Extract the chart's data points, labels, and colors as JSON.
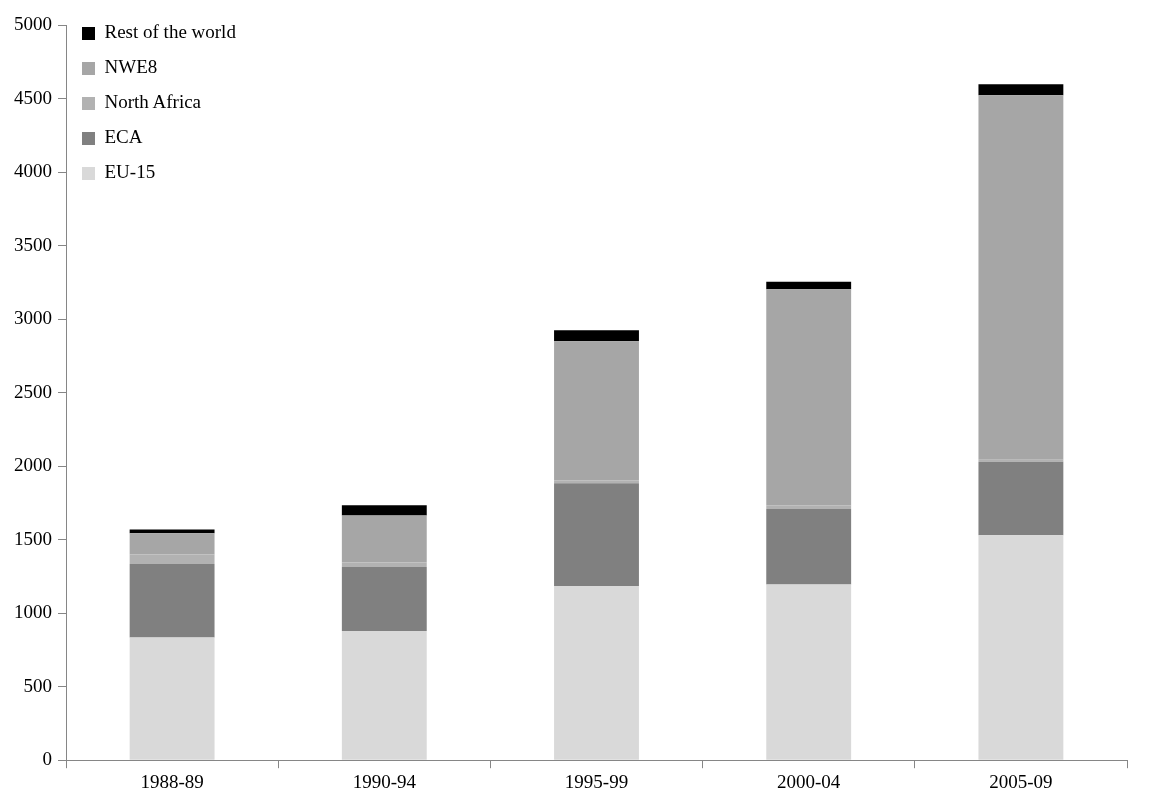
{
  "chart_data": {
    "type": "bar",
    "stacked": true,
    "categories": [
      "1988-89",
      "1990-94",
      "1995-99",
      "2000-04",
      "2005-09"
    ],
    "series": [
      {
        "name": "EU-15",
        "color": "#d9d9d9",
        "values": [
          835,
          880,
          1185,
          1195,
          1530
        ]
      },
      {
        "name": "ECA",
        "color": "#808080",
        "values": [
          500,
          435,
          700,
          515,
          500
        ]
      },
      {
        "name": "North Africa",
        "color": "#b2b2b2",
        "values": [
          65,
          30,
          20,
          25,
          15
        ]
      },
      {
        "name": "NWE8",
        "color": "#a6a6a6",
        "values": [
          145,
          320,
          945,
          1470,
          2480
        ]
      },
      {
        "name": "Rest of the world",
        "color": "#000000",
        "values": [
          25,
          70,
          75,
          50,
          75
        ]
      }
    ],
    "ylim": [
      0,
      5000
    ],
    "yticks": [
      0,
      500,
      1000,
      1500,
      2000,
      2500,
      3000,
      3500,
      4000,
      4500,
      5000
    ],
    "grid": false,
    "legend": "top left"
  }
}
